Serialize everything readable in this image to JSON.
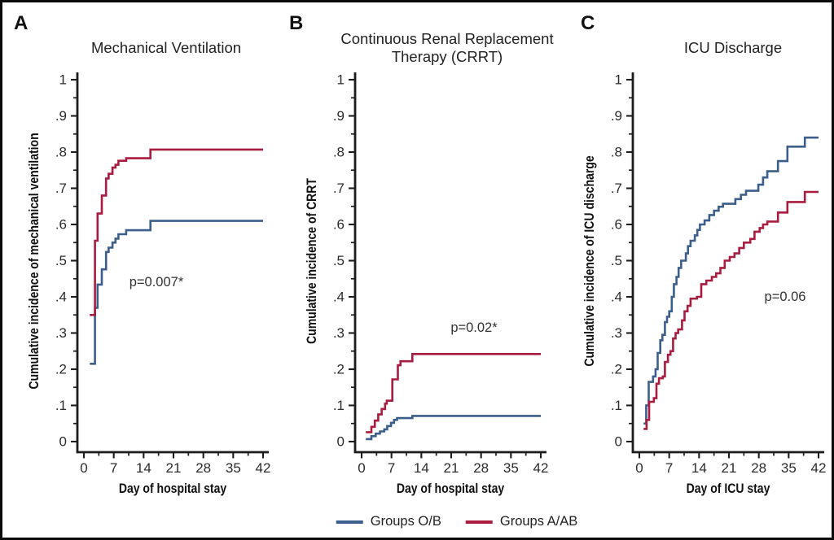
{
  "figure": {
    "background": "#ffffff",
    "border_color": "#0a0a0a",
    "axis_color": "#1c1c1c",
    "colors": {
      "ob": "#3C5E8A",
      "aab": "#A81C3F"
    },
    "legend": {
      "entries": [
        {
          "label": "Groups O/B",
          "series": "ob"
        },
        {
          "label": "Groups A/AB",
          "series": "aab"
        }
      ]
    }
  },
  "chart_data": [
    {
      "type": "line",
      "subtype": "step-cumulative-incidence",
      "panel_letter": "A",
      "title": "Mechanical Ventilation",
      "title_lines": [
        "Mechanical Ventilation"
      ],
      "xlabel": "Day of hospital stay",
      "ylabel": "Cumulative incidence of mechanical ventilation",
      "annotation": "p=0.007*",
      "xlim": [
        0,
        42
      ],
      "ylim": [
        0,
        1
      ],
      "grid": false,
      "x_ticks": {
        "values": [
          0,
          7,
          14,
          21,
          28,
          35,
          42
        ],
        "labels": [
          "0",
          "7",
          "14",
          "21",
          "28",
          "35",
          "42"
        ]
      },
      "y_ticks": {
        "values": [
          0,
          0.1,
          0.2,
          0.3,
          0.4,
          0.5,
          0.6,
          0.7,
          0.8,
          0.9,
          1
        ],
        "labels": [
          "0",
          ".1",
          ".2",
          ".3",
          ".4",
          ".5",
          ".6",
          ".7",
          ".8",
          ".9",
          "1"
        ]
      },
      "series": [
        {
          "name": "Groups O/B",
          "color_key": "ob",
          "points": [
            [
              1.4,
              0.215
            ],
            [
              2.6,
              0.37
            ],
            [
              3.2,
              0.434
            ],
            [
              4.2,
              0.476
            ],
            [
              5.2,
              0.524
            ],
            [
              5.8,
              0.536
            ],
            [
              6.7,
              0.55
            ],
            [
              7.4,
              0.561
            ],
            [
              8.1,
              0.573
            ],
            [
              9.9,
              0.584
            ],
            [
              15.6,
              0.61
            ]
          ]
        },
        {
          "name": "Groups A/AB",
          "color_key": "aab",
          "points": [
            [
              1.4,
              0.35
            ],
            [
              2.6,
              0.555
            ],
            [
              3.2,
              0.63
            ],
            [
              4.2,
              0.68
            ],
            [
              5.2,
              0.727
            ],
            [
              5.8,
              0.74
            ],
            [
              6.7,
              0.757
            ],
            [
              7.4,
              0.765
            ],
            [
              8.1,
              0.776
            ],
            [
              9.9,
              0.783
            ],
            [
              15.6,
              0.807
            ]
          ]
        }
      ]
    },
    {
      "type": "line",
      "subtype": "step-cumulative-incidence",
      "panel_letter": "B",
      "title": "Continuous Renal Replacement Therapy (CRRT)",
      "title_lines": [
        "Continuous Renal Replacement",
        "Therapy (CRRT)"
      ],
      "xlabel": "Day of hospital stay",
      "ylabel": "Cumulative incidence of CRRT",
      "annotation": "p=0.02*",
      "xlim": [
        0,
        42
      ],
      "ylim": [
        0,
        1
      ],
      "grid": false,
      "x_ticks": {
        "values": [
          0,
          7,
          14,
          21,
          28,
          35,
          42
        ],
        "labels": [
          "0",
          "7",
          "14",
          "21",
          "28",
          "35",
          "42"
        ]
      },
      "y_ticks": {
        "values": [
          0,
          0.1,
          0.2,
          0.3,
          0.4,
          0.5,
          0.6,
          0.7,
          0.8,
          0.9,
          1
        ],
        "labels": [
          "0",
          ".1",
          ".2",
          ".3",
          ".4",
          ".5",
          ".6",
          ".7",
          ".8",
          ".9",
          "1"
        ]
      },
      "series": [
        {
          "name": "Groups O/B",
          "color_key": "ob",
          "points": [
            [
              1,
              0.007
            ],
            [
              2.3,
              0.015
            ],
            [
              3.3,
              0.022
            ],
            [
              4.3,
              0.028
            ],
            [
              5.3,
              0.034
            ],
            [
              6,
              0.043
            ],
            [
              6.9,
              0.052
            ],
            [
              7.6,
              0.06
            ],
            [
              8.3,
              0.065
            ],
            [
              11.9,
              0.071
            ]
          ]
        },
        {
          "name": "Groups A/AB",
          "color_key": "aab",
          "points": [
            [
              1,
              0.026
            ],
            [
              2.3,
              0.041
            ],
            [
              3.1,
              0.058
            ],
            [
              3.9,
              0.075
            ],
            [
              4.7,
              0.09
            ],
            [
              5.5,
              0.105
            ],
            [
              5.9,
              0.113
            ],
            [
              7.2,
              0.172
            ],
            [
              8.5,
              0.211
            ],
            [
              9.1,
              0.222
            ],
            [
              11.9,
              0.242
            ]
          ]
        }
      ]
    },
    {
      "type": "line",
      "subtype": "step-cumulative-incidence",
      "panel_letter": "C",
      "title": "ICU Discharge",
      "title_lines": [
        "ICU Discharge"
      ],
      "xlabel": "Day of ICU stay",
      "ylabel": "Cumulative incidence of ICU discharge",
      "annotation": "p=0.06",
      "xlim": [
        0,
        42
      ],
      "ylim": [
        0,
        1
      ],
      "grid": false,
      "x_ticks": {
        "values": [
          0,
          7,
          14,
          21,
          28,
          35,
          42
        ],
        "labels": [
          "0",
          "7",
          "14",
          "21",
          "28",
          "35",
          "42"
        ]
      },
      "y_ticks": {
        "values": [
          0,
          0.1,
          0.2,
          0.3,
          0.4,
          0.5,
          0.6,
          0.7,
          0.8,
          0.9,
          1
        ],
        "labels": [
          "0",
          ".1",
          ".2",
          ".3",
          ".4",
          ".5",
          ".6",
          ".7",
          ".8",
          ".9",
          "1"
        ]
      },
      "series": [
        {
          "name": "Groups O/B",
          "color_key": "ob",
          "points": [
            [
              1,
              0.05
            ],
            [
              1.6,
              0.1
            ],
            [
              2.2,
              0.165
            ],
            [
              3.2,
              0.18
            ],
            [
              3.8,
              0.2
            ],
            [
              4.3,
              0.245
            ],
            [
              4.9,
              0.28
            ],
            [
              5.4,
              0.295
            ],
            [
              6,
              0.33
            ],
            [
              6.5,
              0.345
            ],
            [
              7,
              0.36
            ],
            [
              7.6,
              0.4
            ],
            [
              8.1,
              0.435
            ],
            [
              8.7,
              0.455
            ],
            [
              9.2,
              0.48
            ],
            [
              9.8,
              0.5
            ],
            [
              10.9,
              0.52
            ],
            [
              11.4,
              0.54
            ],
            [
              12,
              0.555
            ],
            [
              13,
              0.57
            ],
            [
              13.6,
              0.585
            ],
            [
              14.2,
              0.6
            ],
            [
              15.3,
              0.611
            ],
            [
              16.4,
              0.626
            ],
            [
              17.5,
              0.638
            ],
            [
              18.6,
              0.649
            ],
            [
              19.6,
              0.657
            ],
            [
              22.5,
              0.67
            ],
            [
              23.8,
              0.682
            ],
            [
              25,
              0.693
            ],
            [
              27.9,
              0.71
            ],
            [
              29,
              0.73
            ],
            [
              30,
              0.747
            ],
            [
              32.5,
              0.775
            ],
            [
              34.7,
              0.815
            ],
            [
              38.8,
              0.84
            ]
          ]
        },
        {
          "name": "Groups A/AB",
          "color_key": "aab",
          "points": [
            [
              1,
              0.035
            ],
            [
              1.7,
              0.06
            ],
            [
              2.3,
              0.11
            ],
            [
              3.4,
              0.12
            ],
            [
              4,
              0.16
            ],
            [
              4.6,
              0.175
            ],
            [
              5.5,
              0.18
            ],
            [
              6,
              0.22
            ],
            [
              6.7,
              0.24
            ],
            [
              7.3,
              0.25
            ],
            [
              7.9,
              0.285
            ],
            [
              8.5,
              0.3
            ],
            [
              9.1,
              0.31
            ],
            [
              10,
              0.335
            ],
            [
              10.6,
              0.36
            ],
            [
              11.3,
              0.375
            ],
            [
              12,
              0.395
            ],
            [
              13.5,
              0.4
            ],
            [
              14.5,
              0.435
            ],
            [
              15.7,
              0.445
            ],
            [
              17,
              0.455
            ],
            [
              18,
              0.465
            ],
            [
              19,
              0.48
            ],
            [
              20,
              0.5
            ],
            [
              21.2,
              0.51
            ],
            [
              22.3,
              0.52
            ],
            [
              23.4,
              0.535
            ],
            [
              24.5,
              0.55
            ],
            [
              26,
              0.56
            ],
            [
              27,
              0.58
            ],
            [
              28.2,
              0.59
            ],
            [
              29,
              0.6
            ],
            [
              30,
              0.608
            ],
            [
              32.5,
              0.633
            ],
            [
              34.7,
              0.662
            ],
            [
              38.8,
              0.69
            ]
          ]
        }
      ]
    }
  ]
}
